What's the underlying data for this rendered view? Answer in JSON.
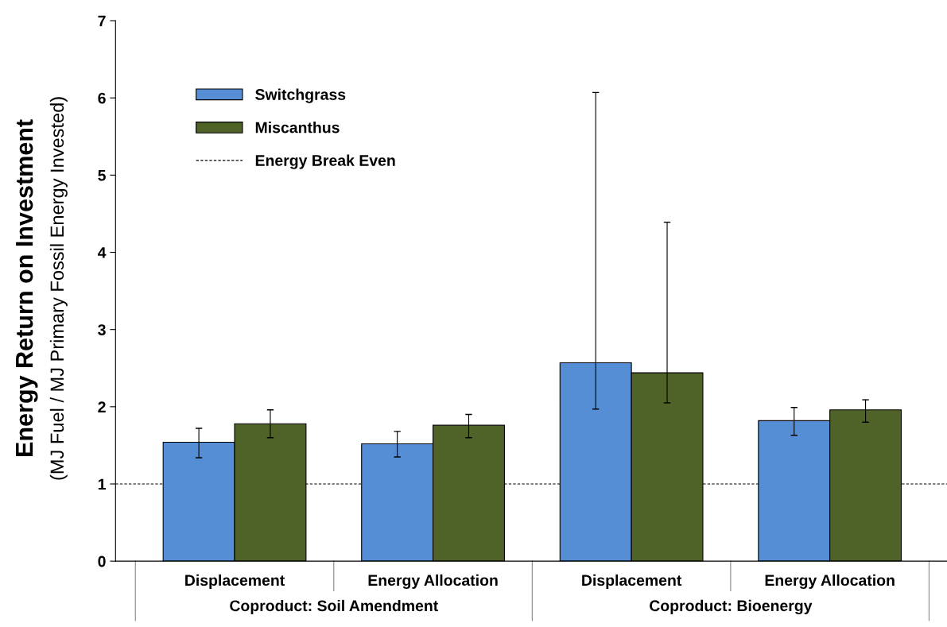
{
  "chart_data": {
    "type": "bar",
    "ylabel": "Energy Return on Investment\n(MJ Fuel / MJ Primary Fossil Energy Invested)",
    "categories": [
      "Displacement",
      "Energy Allocation",
      "Displacement",
      "Energy Allocation"
    ],
    "series": [
      {
        "name": "Switchgrass",
        "color": "#558ed5",
        "values": [
          1.54,
          1.52,
          2.57,
          1.82
        ],
        "errors": [
          [
            1.34,
            1.72
          ],
          [
            1.35,
            1.68
          ],
          [
            1.97,
            6.07
          ],
          [
            1.63,
            1.99
          ]
        ]
      },
      {
        "name": "Miscanthus",
        "color": "#4f6228",
        "values": [
          1.78,
          1.76,
          2.44,
          1.96
        ],
        "errors": [
          [
            1.6,
            1.96
          ],
          [
            1.6,
            1.9
          ],
          [
            2.05,
            4.39
          ],
          [
            1.8,
            2.09
          ]
        ]
      }
    ],
    "ref_lines": [
      {
        "axis": "y",
        "value": 1,
        "label": "Energy Break Even",
        "color": "#000000",
        "line_style": "dashed"
      }
    ],
    "annotations": [
      "Coproduct: Soil Amendment",
      "Coproduct: Bioenergy"
    ],
    "ylim": [
      0,
      7
    ],
    "yticks": [
      0,
      1,
      2,
      3,
      4,
      5,
      6,
      7
    ],
    "legend": "top left",
    "grid": false
  }
}
